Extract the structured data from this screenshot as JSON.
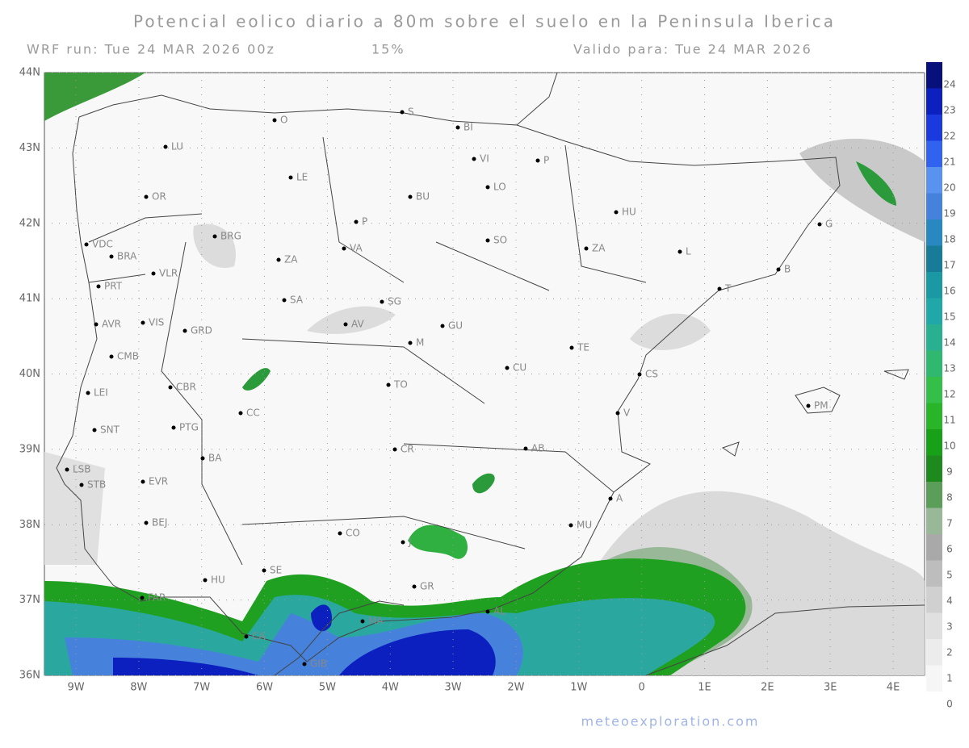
{
  "header": {
    "title": "Potencial eolico diario a 80m sobre el suelo en la Peninsula Iberica",
    "run": "WRF run: Tue 24 MAR 2026 00z",
    "percent": "15%",
    "valid": "Valido para: Tue 24 MAR 2026"
  },
  "lat_labels": [
    "44N",
    "43N",
    "42N",
    "41N",
    "40N",
    "39N",
    "38N",
    "37N",
    "36N"
  ],
  "lon_labels": [
    "9W",
    "8W",
    "7W",
    "6W",
    "5W",
    "4W",
    "3W",
    "2W",
    "1W",
    "0",
    "1E",
    "2E",
    "3E",
    "4E"
  ],
  "colorbar": {
    "levels": [
      0,
      1,
      2,
      3,
      4,
      5,
      6,
      7,
      8,
      9,
      10,
      11,
      12,
      13,
      14,
      15,
      16,
      17,
      18,
      19,
      20,
      21,
      22,
      23,
      24
    ],
    "colors": [
      "#f6f6f6",
      "#ececec",
      "#e0e0e0",
      "#d0d0d0",
      "#bdbdbd",
      "#a9a9a9",
      "#98b898",
      "#5a9e5a",
      "#1e8a1e",
      "#18a018",
      "#2ab42a",
      "#34c048",
      "#30b870",
      "#28b090",
      "#20a8a8",
      "#1a98a4",
      "#187c98",
      "#2a88c0",
      "#4682dc",
      "#5a92f0",
      "#3262f0",
      "#1a3ae0",
      "#0c20c0",
      "#08107c"
    ]
  },
  "cities": [
    "O",
    "S",
    "BI",
    "LU",
    "LE",
    "VI",
    "P",
    "BU",
    "LO",
    "HU",
    "OR",
    "P",
    "SO",
    "ZA",
    "G",
    "BRG",
    "VA",
    "ZA",
    "L",
    "B",
    "VDC",
    "BRA",
    "PRT",
    "VLR",
    "T",
    "SA",
    "SG",
    "AVR",
    "VIS",
    "GRD",
    "AV",
    "GU",
    "M",
    "TE",
    "CMB",
    "CU",
    "CS",
    "LEI",
    "CBR",
    "TO",
    "PM",
    "CC",
    "V",
    "SNT",
    "PTG",
    "CR",
    "AB",
    "LSB",
    "BA",
    "STB",
    "EVR",
    "A",
    "BEJ",
    "MU",
    "CO",
    "J",
    "SE",
    "HU",
    "GR",
    "FAR",
    "AL",
    "MA",
    "CA",
    "GIB"
  ],
  "footer": "meteoexploration.com"
}
